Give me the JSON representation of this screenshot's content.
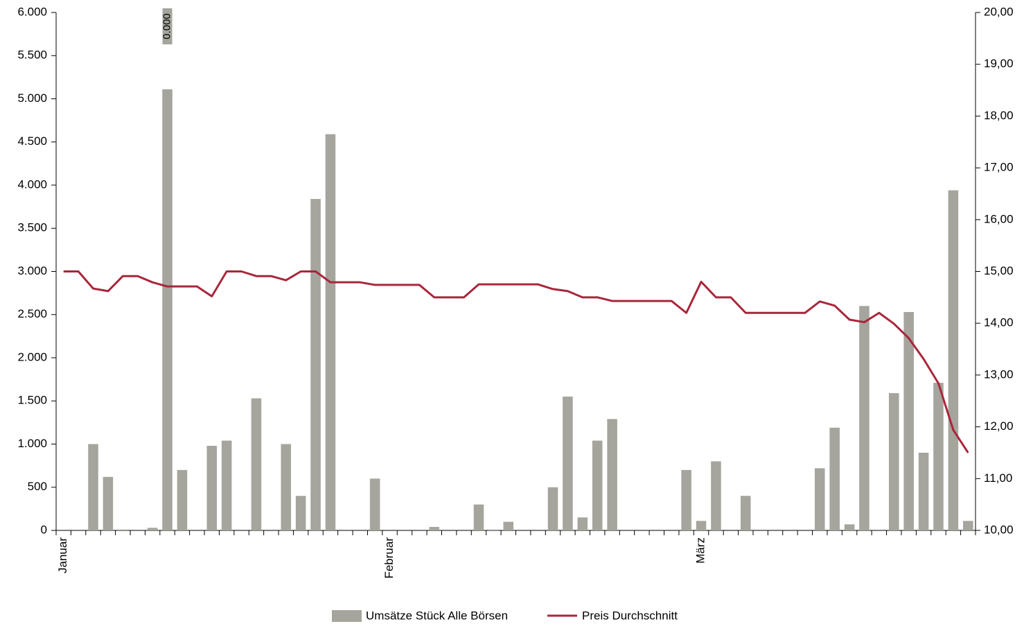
{
  "chart_data": {
    "type": "bar-line",
    "categories": [
      "Januar",
      null,
      null,
      null,
      null,
      null,
      null,
      null,
      null,
      null,
      null,
      null,
      null,
      null,
      null,
      null,
      null,
      null,
      null,
      null,
      null,
      null,
      "Februar",
      null,
      null,
      null,
      null,
      null,
      null,
      null,
      null,
      null,
      null,
      null,
      null,
      null,
      null,
      null,
      null,
      null,
      null,
      null,
      null,
      "März",
      null,
      null,
      null,
      null,
      null,
      null,
      null,
      null,
      null,
      null,
      null,
      null,
      null,
      null,
      null,
      null,
      null,
      null
    ],
    "series": [
      {
        "name": "Umsätze Stück Alle Börsen",
        "type": "bar",
        "color": "#a5a59d",
        "axis": "y",
        "values": [
          0,
          0,
          1000,
          620,
          10,
          0,
          30,
          5110,
          700,
          0,
          980,
          1040,
          0,
          1530,
          0,
          1000,
          400,
          3840,
          4590,
          0,
          0,
          600,
          0,
          0,
          0,
          40,
          0,
          0,
          300,
          10,
          100,
          0,
          0,
          500,
          1550,
          150,
          1040,
          1290,
          0,
          0,
          0,
          0,
          700,
          110,
          800,
          0,
          400,
          0,
          0,
          0,
          0,
          720,
          1190,
          70,
          2600,
          0,
          1590,
          2530,
          900,
          1710,
          3940,
          110
        ]
      },
      {
        "name": "Preis Durchschnitt",
        "type": "line",
        "color": "#a8263a",
        "axis": "y2",
        "values": [
          15.0,
          15.0,
          14.67,
          14.62,
          14.91,
          14.91,
          14.79,
          14.71,
          14.71,
          14.71,
          14.52,
          15.0,
          15.0,
          14.91,
          14.91,
          14.83,
          15.0,
          15.0,
          14.79,
          14.79,
          14.79,
          14.74,
          14.74,
          14.74,
          14.74,
          14.5,
          14.5,
          14.5,
          14.75,
          14.75,
          14.75,
          14.75,
          14.75,
          14.66,
          14.62,
          14.5,
          14.5,
          14.43,
          14.43,
          14.43,
          14.43,
          14.43,
          14.2,
          14.8,
          14.5,
          14.5,
          14.2,
          14.2,
          14.2,
          14.2,
          14.2,
          14.42,
          14.34,
          14.07,
          14.02,
          14.2,
          13.99,
          13.71,
          13.31,
          12.84,
          11.94,
          11.5
        ]
      }
    ],
    "annotations": [
      {
        "text": "0.000",
        "index": 7
      }
    ],
    "ylim": [
      0,
      6000
    ],
    "yticks": [
      0,
      500,
      {
        "value": 1000,
        "label": "1.000"
      },
      {
        "value": 1500,
        "label": "1.500"
      },
      {
        "value": 2000,
        "label": "2.000"
      },
      {
        "value": 2500,
        "label": "2.500"
      },
      {
        "value": 3000,
        "label": "3.000"
      },
      {
        "value": 3500,
        "label": "3.500"
      },
      {
        "value": 4000,
        "label": "4.000"
      },
      {
        "value": 4500,
        "label": "4.500"
      },
      {
        "value": 5000,
        "label": "5.000"
      },
      {
        "value": 5500,
        "label": "5.500"
      },
      {
        "value": 6000,
        "label": "6.000"
      }
    ],
    "y2lim": [
      10,
      20
    ],
    "y2ticks": [
      {
        "value": 10,
        "label": "10,00"
      },
      {
        "value": 11,
        "label": "11,00"
      },
      {
        "value": 12,
        "label": "12,00"
      },
      {
        "value": 13,
        "label": "13,00"
      },
      {
        "value": 14,
        "label": "14,00"
      },
      {
        "value": 15,
        "label": "15,00"
      },
      {
        "value": 16,
        "label": "16,00"
      },
      {
        "value": 17,
        "label": "17,00"
      },
      {
        "value": 18,
        "label": "18,00"
      },
      {
        "value": 19,
        "label": "19,00"
      },
      {
        "value": 20,
        "label": "20,00"
      }
    ],
    "legend": "bottom"
  }
}
